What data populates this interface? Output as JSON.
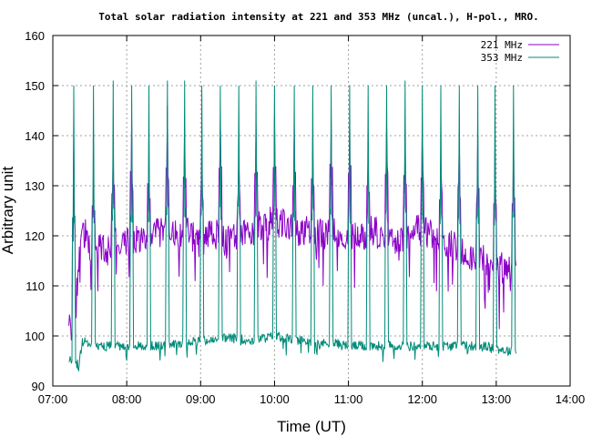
{
  "chart_data": {
    "type": "line",
    "title": "Total solar radiation intensity at 221 and 353 MHz (uncal.), H-pol., MRO.",
    "xlabel": "Time (UT)",
    "ylabel": "Arbitrary unit",
    "xlim": [
      "07:00",
      "14:00"
    ],
    "ylim": [
      90,
      160
    ],
    "x_ticks": [
      "07:00",
      "08:00",
      "09:00",
      "10:00",
      "11:00",
      "12:00",
      "13:00",
      "14:00"
    ],
    "y_ticks": [
      90,
      100,
      110,
      120,
      130,
      140,
      150,
      160
    ],
    "grid": true,
    "legend_position": "top-right",
    "series": [
      {
        "name": "221 MHz",
        "color": "#8b00c8",
        "baseline": [
          [
            "07:13",
            101.5
          ],
          [
            "07:15",
            102
          ],
          [
            "07:18",
            103
          ],
          [
            "07:22",
            118
          ],
          [
            "07:26",
            121
          ],
          [
            "07:30",
            117
          ],
          [
            "07:35",
            116
          ],
          [
            "07:40",
            118
          ],
          [
            "07:45",
            117
          ],
          [
            "07:50",
            120
          ],
          [
            "08:00",
            119
          ],
          [
            "08:10",
            120
          ],
          [
            "08:20",
            120
          ],
          [
            "08:30",
            121
          ],
          [
            "08:40",
            120
          ],
          [
            "08:50",
            121
          ],
          [
            "09:00",
            118
          ],
          [
            "09:10",
            121
          ],
          [
            "09:20",
            119
          ],
          [
            "09:30",
            120
          ],
          [
            "09:40",
            121
          ],
          [
            "09:50",
            122
          ],
          [
            "10:00",
            123
          ],
          [
            "10:10",
            122
          ],
          [
            "10:20",
            121
          ],
          [
            "10:30",
            121
          ],
          [
            "10:40",
            120
          ],
          [
            "10:50",
            121
          ],
          [
            "11:00",
            120
          ],
          [
            "11:10",
            120
          ],
          [
            "11:20",
            121
          ],
          [
            "11:30",
            120
          ],
          [
            "11:40",
            119
          ],
          [
            "11:50",
            121
          ],
          [
            "12:00",
            121
          ],
          [
            "12:10",
            120
          ],
          [
            "12:20",
            119
          ],
          [
            "12:30",
            117
          ],
          [
            "12:40",
            116
          ],
          [
            "12:50",
            115
          ],
          [
            "13:00",
            114
          ],
          [
            "13:10",
            113
          ],
          [
            "13:16",
            112
          ]
        ]
      },
      {
        "name": "353 MHz",
        "color": "#008b78",
        "baseline": [
          [
            "07:13",
            95.5
          ],
          [
            "07:18",
            95
          ],
          [
            "07:21",
            94
          ],
          [
            "07:24",
            99
          ],
          [
            "07:30",
            98.5
          ],
          [
            "07:40",
            98
          ],
          [
            "07:50",
            98
          ],
          [
            "08:00",
            98
          ],
          [
            "08:10",
            98
          ],
          [
            "08:20",
            98
          ],
          [
            "08:30",
            98
          ],
          [
            "08:40",
            98.5
          ],
          [
            "08:50",
            99
          ],
          [
            "09:00",
            99
          ],
          [
            "09:10",
            99
          ],
          [
            "09:20",
            99.5
          ],
          [
            "09:30",
            99.5
          ],
          [
            "09:40",
            99
          ],
          [
            "09:50",
            99.5
          ],
          [
            "10:00",
            100
          ],
          [
            "10:10",
            99.5
          ],
          [
            "10:20",
            99
          ],
          [
            "10:30",
            99
          ],
          [
            "10:40",
            98.5
          ],
          [
            "10:50",
            98.5
          ],
          [
            "11:00",
            98
          ],
          [
            "11:10",
            98
          ],
          [
            "11:20",
            98
          ],
          [
            "11:30",
            98
          ],
          [
            "11:40",
            98
          ],
          [
            "11:50",
            98
          ],
          [
            "12:00",
            98
          ],
          [
            "12:10",
            98
          ],
          [
            "12:20",
            98
          ],
          [
            "12:30",
            98
          ],
          [
            "12:40",
            98
          ],
          [
            "12:50",
            98
          ],
          [
            "13:00",
            97.5
          ],
          [
            "13:10",
            97
          ],
          [
            "13:16",
            97
          ]
        ]
      }
    ],
    "bursts": [
      {
        "t": "07:17",
        "v221": 138,
        "v353": 150
      },
      {
        "t": "07:33",
        "v221": 133,
        "v353": 150
      },
      {
        "t": "07:49",
        "v221": 138,
        "v353": 151
      },
      {
        "t": "08:04",
        "v221": 143,
        "v353": 150
      },
      {
        "t": "08:18",
        "v221": 136,
        "v353": 150
      },
      {
        "t": "08:33",
        "v221": 146,
        "v353": 151
      },
      {
        "t": "08:47",
        "v221": 142,
        "v353": 151
      },
      {
        "t": "09:01",
        "v221": 138,
        "v353": 150
      },
      {
        "t": "09:16",
        "v221": 143,
        "v353": 150
      },
      {
        "t": "09:31",
        "v221": 136,
        "v353": 150
      },
      {
        "t": "09:45",
        "v221": 142,
        "v353": 151
      },
      {
        "t": "10:00",
        "v221": 144,
        "v353": 150
      },
      {
        "t": "10:16",
        "v221": 142,
        "v353": 150
      },
      {
        "t": "10:31",
        "v221": 138,
        "v353": 150
      },
      {
        "t": "10:46",
        "v221": 143,
        "v353": 150
      },
      {
        "t": "11:01",
        "v221": 142,
        "v353": 150
      },
      {
        "t": "11:16",
        "v221": 137,
        "v353": 150
      },
      {
        "t": "11:31",
        "v221": 142,
        "v353": 150
      },
      {
        "t": "11:46",
        "v221": 140,
        "v353": 151
      },
      {
        "t": "12:00",
        "v221": 143,
        "v353": 150
      },
      {
        "t": "12:15",
        "v221": 136,
        "v353": 150
      },
      {
        "t": "12:30",
        "v221": 140,
        "v353": 150
      },
      {
        "t": "12:45",
        "v221": 140,
        "v353": 150
      },
      {
        "t": "12:59",
        "v221": 138,
        "v353": 150
      },
      {
        "t": "13:14",
        "v221": 140,
        "v353": 150
      }
    ]
  }
}
